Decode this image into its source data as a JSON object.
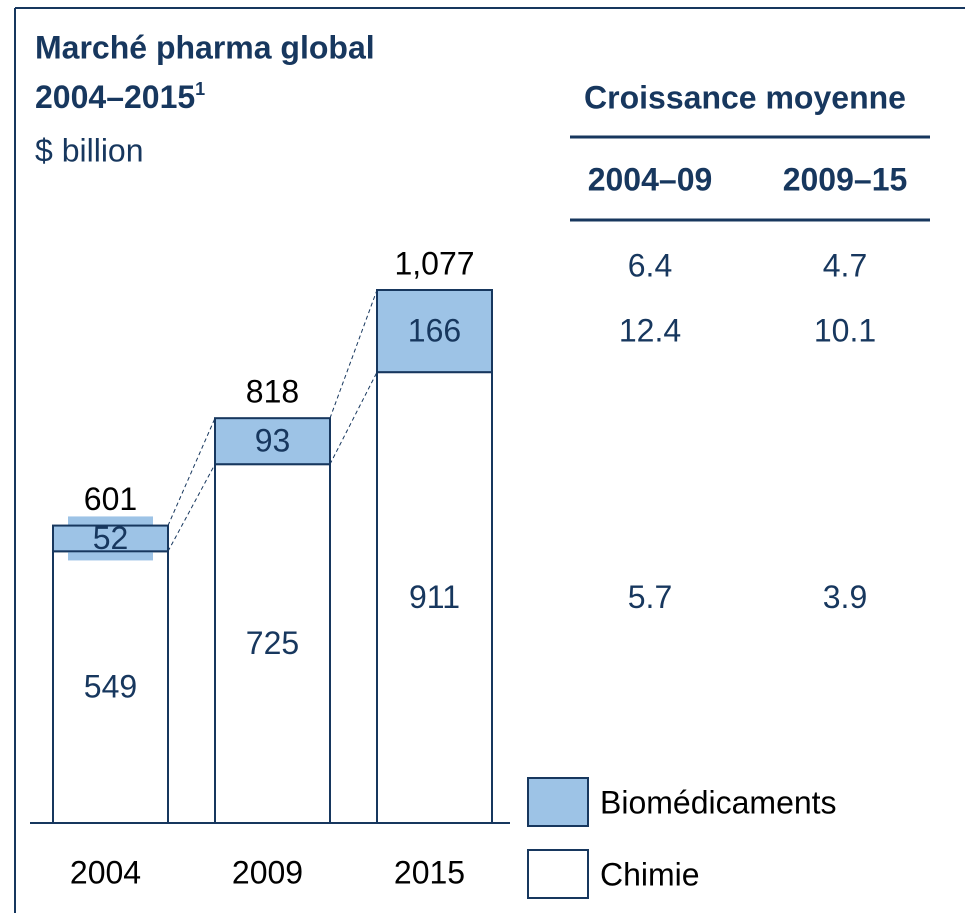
{
  "chart_data": {
    "type": "stacked_bar",
    "title": "Marché pharma global",
    "subtitle": "2004–2015",
    "subtitle_footnote": "1",
    "unit": "$ billion",
    "categories": [
      "2004",
      "2009",
      "2015"
    ],
    "series": [
      {
        "name": "Chimie",
        "color": "#ffffff",
        "values": [
          549,
          725,
          911
        ]
      },
      {
        "name": "Biomédicaments",
        "color": "#9dc3e6",
        "values": [
          52,
          93,
          166
        ]
      }
    ],
    "totals": [
      601,
      818,
      1077
    ],
    "totals_labels": [
      "601",
      "818",
      "1,077"
    ]
  },
  "growth_table": {
    "title": "Croissance moyenne",
    "columns": [
      "2004–09",
      "2009–15"
    ],
    "rows": [
      [
        6.4,
        4.7
      ],
      [
        12.4,
        10.1
      ],
      [
        5.7,
        3.9
      ]
    ]
  }
}
